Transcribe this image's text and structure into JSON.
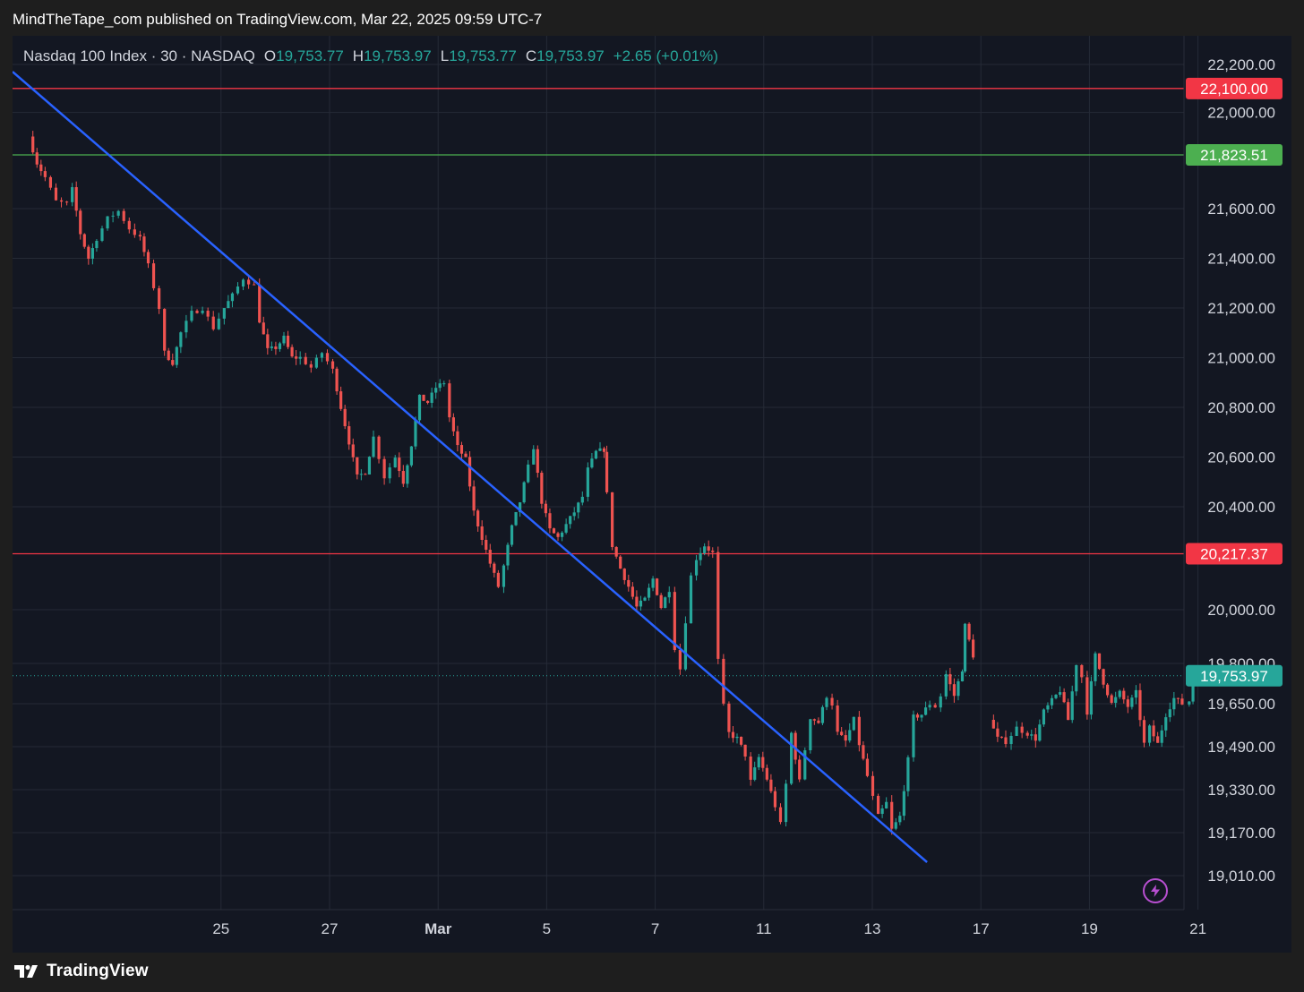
{
  "header": {
    "publish_line": "MindTheTape_com published on TradingView.com, Mar 22, 2025 09:59 UTC-7"
  },
  "legend": {
    "symbol": "Nasdaq 100 Index · 30 · NASDAQ",
    "o_label": "O",
    "o_value": "19,753.77",
    "h_label": "H",
    "h_value": "19,753.97",
    "l_label": "L",
    "l_value": "19,753.77",
    "c_label": "C",
    "c_value": "19,753.97",
    "change": "+2.65 (+0.01%)"
  },
  "footer": {
    "brand": "TradingView"
  },
  "colors": {
    "up": "#26a69a",
    "down": "#ef5350",
    "resistance": "#f23645",
    "support": "#4caf50",
    "trendline": "#2962ff",
    "background": "#131722"
  },
  "icons": {
    "bolt": "lightning-bolt-icon",
    "logo": "tradingview-logo-icon"
  },
  "chart_data": {
    "type": "candlestick",
    "interval": "30",
    "x_ticks": [
      {
        "label": "25",
        "day": 3
      },
      {
        "label": "27",
        "day": 5
      },
      {
        "label": "Mar",
        "day": 7,
        "bold": true
      },
      {
        "label": "5",
        "day": 9
      },
      {
        "label": "7",
        "day": 11
      },
      {
        "label": "11",
        "day": 13
      },
      {
        "label": "13",
        "day": 15
      },
      {
        "label": "17",
        "day": 17
      },
      {
        "label": "19",
        "day": 19
      },
      {
        "label": "21",
        "day": 21
      }
    ],
    "y_axis": {
      "segments": [
        {
          "labels": [
            "22,200.00",
            "22,000.00",
            "21,600.00",
            "21,400.00",
            "21,200.00",
            "21,000.00",
            "20,800.00",
            "20,600.00",
            "20,400.00"
          ]
        },
        {
          "labels": [
            "20,000.00",
            "19,800.00",
            "19,650.00",
            "19,490.00",
            "19,330.00",
            "19,170.00",
            "19,010.00"
          ]
        }
      ],
      "ticks": [
        22200,
        22000,
        21600,
        21400,
        21200,
        21000,
        20800,
        20600,
        20400,
        20000,
        19800,
        19650,
        19490,
        19330,
        19170,
        19010
      ]
    },
    "levels": [
      {
        "name": "resistance-upper",
        "value": 22100.0,
        "label": "22,100.00",
        "color": "#f23645"
      },
      {
        "name": "support-upper",
        "value": 21823.51,
        "label": "21,823.51",
        "color": "#4caf50"
      },
      {
        "name": "resistance-mid",
        "value": 20217.37,
        "label": "20,217.37",
        "color": "#f23645"
      },
      {
        "name": "last-price",
        "value": 19753.97,
        "label": "19,753.97",
        "color": "#26a69a"
      }
    ],
    "trendline": {
      "start": {
        "day": 0.0,
        "price": 22170
      },
      "end": {
        "day": 16.85,
        "price": 19060
      }
    },
    "price_path": [
      [
        0.0,
        21940
      ],
      [
        0.3,
        21900
      ],
      [
        0.45,
        21790
      ],
      [
        0.6,
        21730
      ],
      [
        0.8,
        21630
      ],
      [
        1.0,
        21620
      ],
      [
        1.1,
        21680
      ],
      [
        1.25,
        21500
      ],
      [
        1.4,
        21400
      ],
      [
        1.55,
        21480
      ],
      [
        1.75,
        21560
      ],
      [
        1.95,
        21590
      ],
      [
        2.15,
        21520
      ],
      [
        2.35,
        21480
      ],
      [
        2.5,
        21370
      ],
      [
        2.7,
        21200
      ],
      [
        2.8,
        21020
      ],
      [
        2.95,
        20980
      ],
      [
        3.1,
        21100
      ],
      [
        3.3,
        21180
      ],
      [
        3.5,
        21200
      ],
      [
        3.7,
        21120
      ],
      [
        3.9,
        21200
      ],
      [
        4.05,
        21250
      ],
      [
        4.25,
        21320
      ],
      [
        4.45,
        21290
      ],
      [
        4.55,
        21150
      ],
      [
        4.7,
        21030
      ],
      [
        4.85,
        21040
      ],
      [
        5.0,
        21080
      ],
      [
        5.15,
        21000
      ],
      [
        5.3,
        21000
      ],
      [
        5.5,
        20960
      ],
      [
        5.7,
        21020
      ],
      [
        5.9,
        20950
      ],
      [
        6.05,
        20800
      ],
      [
        6.2,
        20660
      ],
      [
        6.35,
        20520
      ],
      [
        6.5,
        20540
      ],
      [
        6.65,
        20680
      ],
      [
        6.85,
        20520
      ],
      [
        7.05,
        20600
      ],
      [
        7.2,
        20500
      ],
      [
        7.35,
        20650
      ],
      [
        7.5,
        20840
      ],
      [
        7.65,
        20820
      ],
      [
        7.8,
        20880
      ],
      [
        7.95,
        20900
      ],
      [
        8.05,
        20760
      ],
      [
        8.2,
        20640
      ],
      [
        8.35,
        20590
      ],
      [
        8.5,
        20380
      ],
      [
        8.65,
        20280
      ],
      [
        8.8,
        20180
      ],
      [
        8.95,
        20090
      ],
      [
        9.05,
        20170
      ],
      [
        9.2,
        20320
      ],
      [
        9.35,
        20420
      ],
      [
        9.5,
        20560
      ],
      [
        9.6,
        20640
      ],
      [
        9.75,
        20420
      ],
      [
        9.9,
        20310
      ],
      [
        10.05,
        20280
      ],
      [
        10.2,
        20330
      ],
      [
        10.35,
        20380
      ],
      [
        10.5,
        20440
      ],
      [
        10.6,
        20550
      ],
      [
        10.75,
        20620
      ],
      [
        10.9,
        20630
      ],
      [
        10.95,
        20450
      ],
      [
        11.05,
        20250
      ],
      [
        11.2,
        20160
      ],
      [
        11.35,
        20090
      ],
      [
        11.5,
        20010
      ],
      [
        11.65,
        20040
      ],
      [
        11.8,
        20120
      ],
      [
        11.95,
        20010
      ],
      [
        12.1,
        20080
      ],
      [
        12.2,
        19860
      ],
      [
        12.3,
        19780
      ],
      [
        12.4,
        19960
      ],
      [
        12.5,
        20130
      ],
      [
        12.6,
        20200
      ],
      [
        12.75,
        20250
      ],
      [
        12.9,
        20220
      ],
      [
        13.0,
        19810
      ],
      [
        13.1,
        19640
      ],
      [
        13.2,
        19540
      ],
      [
        13.35,
        19520
      ],
      [
        13.5,
        19460
      ],
      [
        13.6,
        19360
      ],
      [
        13.75,
        19450
      ],
      [
        13.9,
        19370
      ],
      [
        14.05,
        19270
      ],
      [
        14.15,
        19200
      ],
      [
        14.25,
        19350
      ],
      [
        14.35,
        19540
      ],
      [
        14.5,
        19360
      ],
      [
        14.7,
        19600
      ],
      [
        14.85,
        19580
      ],
      [
        15.0,
        19680
      ],
      [
        15.1,
        19650
      ],
      [
        15.2,
        19540
      ],
      [
        15.35,
        19510
      ],
      [
        15.5,
        19590
      ],
      [
        15.6,
        19500
      ],
      [
        15.75,
        19380
      ],
      [
        15.85,
        19300
      ],
      [
        15.95,
        19230
      ],
      [
        16.1,
        19280
      ],
      [
        16.2,
        19180
      ],
      [
        16.35,
        19230
      ],
      [
        16.5,
        19440
      ],
      [
        16.6,
        19600
      ],
      [
        16.75,
        19610
      ],
      [
        16.9,
        19650
      ],
      [
        17.0,
        19640
      ],
      [
        17.1,
        19680
      ],
      [
        17.2,
        19760
      ],
      [
        17.35,
        19680
      ],
      [
        17.5,
        19780
      ],
      [
        17.55,
        19940
      ],
      [
        17.7,
        19830
      ],
      [
        18.0,
        19590
      ],
      [
        18.15,
        19520
      ],
      [
        18.3,
        19510
      ],
      [
        18.5,
        19560
      ],
      [
        18.7,
        19540
      ],
      [
        18.85,
        19520
      ],
      [
        19.0,
        19620
      ],
      [
        19.15,
        19660
      ],
      [
        19.3,
        19700
      ],
      [
        19.45,
        19590
      ],
      [
        19.6,
        19800
      ],
      [
        19.7,
        19750
      ],
      [
        19.8,
        19620
      ],
      [
        19.95,
        19830
      ],
      [
        20.1,
        19730
      ],
      [
        20.25,
        19650
      ],
      [
        20.4,
        19690
      ],
      [
        20.55,
        19640
      ],
      [
        20.7,
        19690
      ],
      [
        20.85,
        19500
      ],
      [
        20.95,
        19560
      ],
      [
        21.1,
        19500
      ],
      [
        21.25,
        19610
      ],
      [
        21.4,
        19670
      ],
      [
        21.55,
        19650
      ],
      [
        21.68,
        19660
      ],
      [
        21.75,
        19754
      ]
    ]
  }
}
